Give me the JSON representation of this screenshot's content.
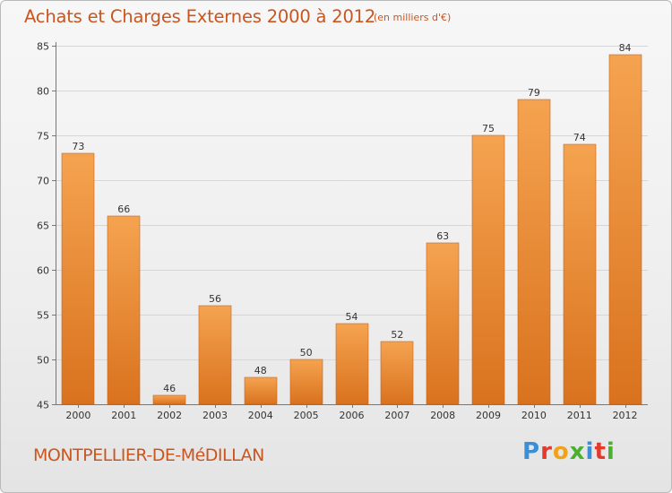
{
  "header": {
    "title": "Achats et Charges Externes 2000 à 2012",
    "subtitle": "(en milliers d'€)"
  },
  "footer": {
    "commune": "MONTPELLIER-DE-MéDILLAN",
    "logo_letters": [
      "P",
      "r",
      "o",
      "x",
      "i",
      "t",
      "i"
    ],
    "logo_colors": [
      "#3a8fd6",
      "#e23a2e",
      "#f0a21b",
      "#4caf2f",
      "#3a8fd6",
      "#e23a2e",
      "#4caf2f"
    ]
  },
  "chart_data": {
    "type": "bar",
    "title": "Achats et Charges Externes 2000 à 2012",
    "subtitle": "(en milliers d'€)",
    "xlabel": "",
    "ylabel": "",
    "categories": [
      "2000",
      "2001",
      "2002",
      "2003",
      "2004",
      "2005",
      "2006",
      "2007",
      "2008",
      "2009",
      "2010",
      "2011",
      "2012"
    ],
    "values": [
      73,
      66,
      46,
      56,
      48,
      50,
      54,
      52,
      63,
      75,
      79,
      74,
      84
    ],
    "ylim": [
      45,
      85
    ],
    "yticks": [
      45,
      50,
      55,
      60,
      65,
      70,
      75,
      80,
      85
    ],
    "grid": true,
    "legend": "none",
    "colors": {
      "bar_top": "#f5a350",
      "bar_bottom": "#d9721e",
      "grid": "#d6d6d6",
      "axis": "#777777",
      "title": "#c9561f"
    }
  }
}
